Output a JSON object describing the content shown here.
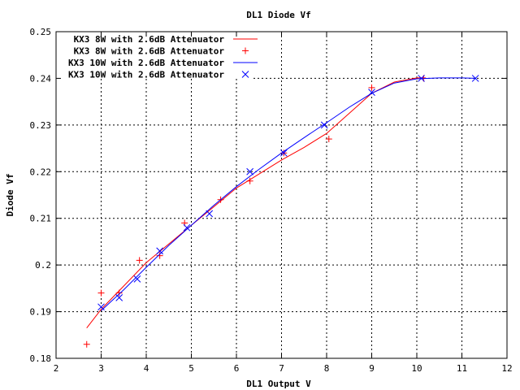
{
  "chart_data": {
    "type": "line",
    "title": "DL1 Diode Vf",
    "xlabel": "DL1 Output V",
    "ylabel": "Diode Vf",
    "xlim": [
      2,
      12
    ],
    "ylim": [
      0.18,
      0.25
    ],
    "xticks": [
      "2",
      "3",
      "4",
      "5",
      "6",
      "7",
      "8",
      "9",
      "10",
      "11",
      "12"
    ],
    "yticks": [
      "0.18",
      "0.19",
      "0.2",
      "0.21",
      "0.22",
      "0.23",
      "0.24",
      "0.25"
    ],
    "grid": true,
    "legend_position": "top-left",
    "series": [
      {
        "name": "KX3  8W with 2.6dB Attenuator",
        "style": "line",
        "color": "#ff0000",
        "x": [
          2.68,
          3.0,
          3.5,
          4.0,
          4.5,
          5.0,
          5.5,
          6.0,
          6.5,
          7.0,
          7.5,
          8.0,
          8.5,
          9.0,
          9.5,
          10.0,
          10.2
        ],
        "y": [
          0.1865,
          0.1905,
          0.1955,
          0.2005,
          0.2045,
          0.2085,
          0.2125,
          0.2165,
          0.2195,
          0.2225,
          0.2252,
          0.2282,
          0.2325,
          0.2368,
          0.2392,
          0.2401,
          0.2401
        ]
      },
      {
        "name": "KX3  8W with 2.6dB Attenuator",
        "style": "points",
        "marker": "+",
        "color": "#ff0000",
        "x": [
          2.68,
          3.0,
          3.4,
          3.85,
          4.3,
          4.85,
          5.65,
          6.3,
          7.05,
          8.05,
          9.0,
          10.15
        ],
        "y": [
          0.183,
          0.194,
          0.194,
          0.201,
          0.202,
          0.209,
          0.214,
          0.218,
          0.224,
          0.227,
          0.238,
          0.24
        ]
      },
      {
        "name": "KX3 10W with 2.6dB Attenuator",
        "style": "line",
        "color": "#0000ff",
        "x": [
          3.0,
          3.5,
          4.0,
          4.5,
          5.0,
          5.5,
          6.0,
          6.5,
          7.0,
          7.5,
          8.0,
          8.5,
          9.0,
          9.5,
          10.0,
          10.5,
          11.0,
          11.3
        ],
        "y": [
          0.1902,
          0.1947,
          0.1995,
          0.2042,
          0.2085,
          0.2128,
          0.2168,
          0.2205,
          0.224,
          0.2273,
          0.2305,
          0.2338,
          0.2368,
          0.239,
          0.2399,
          0.2401,
          0.2401,
          0.24
        ]
      },
      {
        "name": "KX3 10W with 2.6dB Attenuator",
        "style": "points",
        "marker": "x",
        "color": "#0000ff",
        "x": [
          3.0,
          3.4,
          3.8,
          4.3,
          4.9,
          5.4,
          6.3,
          7.05,
          7.95,
          9.0,
          10.1,
          11.3
        ],
        "y": [
          0.191,
          0.193,
          0.197,
          0.203,
          0.208,
          0.211,
          0.22,
          0.224,
          0.23,
          0.237,
          0.24,
          0.24
        ]
      }
    ]
  }
}
